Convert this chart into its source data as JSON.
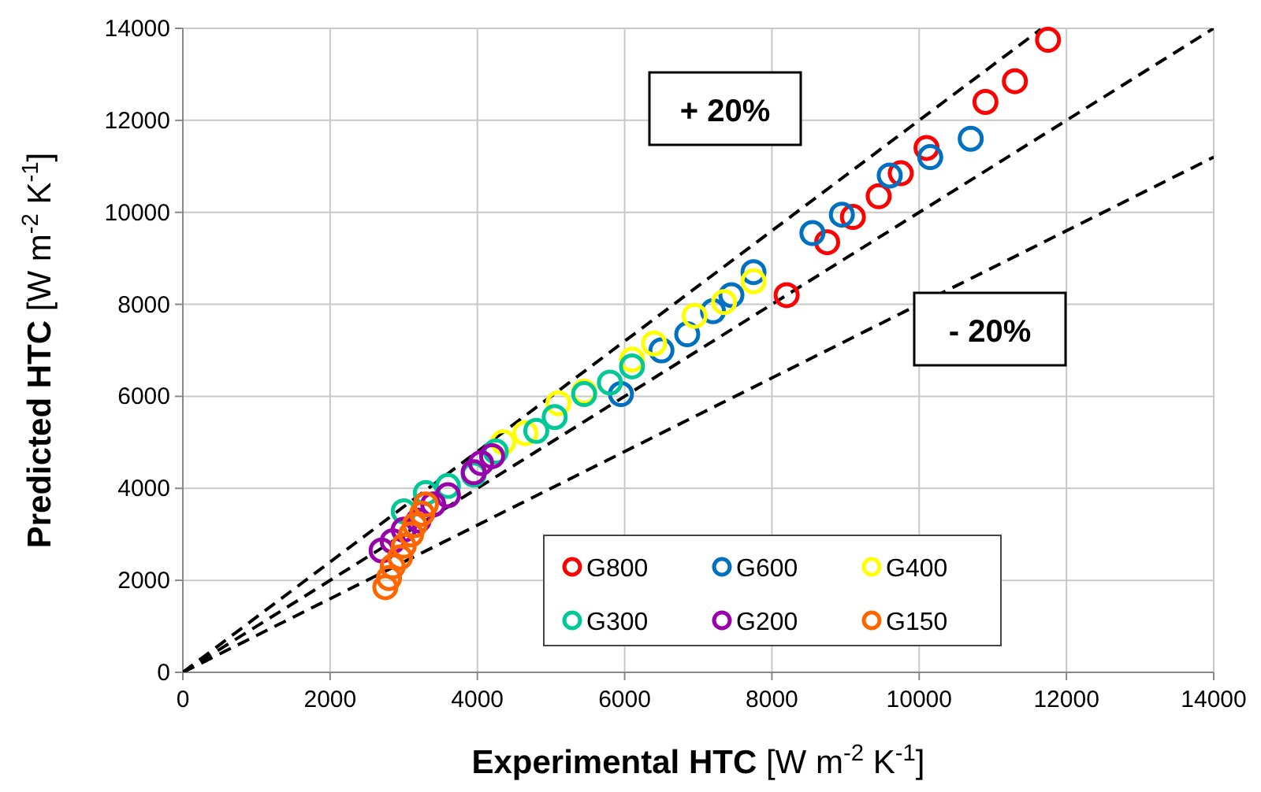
{
  "chart_data": {
    "type": "scatter",
    "xlabel": "Experimental  HTC [W m$^{-2}$ K$^{-1}$]",
    "ylabel": "Predicted  HTC  [W m$^{-2}$ K$^{-1}$]",
    "xlim": [
      0,
      14000
    ],
    "xticks": [
      0,
      2000,
      4000,
      6000,
      8000,
      10000,
      12000,
      14000
    ],
    "ylim": [
      0,
      14000
    ],
    "yticks": [
      0,
      2000,
      4000,
      6000,
      8000,
      10000,
      12000,
      14000
    ],
    "grid": true,
    "legend": "bottom right",
    "marker": "circle",
    "annotations": [
      "+ 20%",
      "- 20%"
    ],
    "series": [
      {
        "name": "G800",
        "color": "#ff0000",
        "x": [
          11750,
          11300,
          10900,
          10100,
          9750,
          9450,
          9100,
          8750,
          8200
        ],
        "values": [
          13750,
          12850,
          12400,
          11400,
          10850,
          10350,
          9900,
          9350,
          8200
        ]
      },
      {
        "name": "G600",
        "color": "#0070c0",
        "x": [
          10700,
          10150,
          9600,
          8950,
          8550,
          7750,
          7450,
          7200,
          6850,
          6500,
          5950
        ],
        "values": [
          11600,
          11200,
          10800,
          9950,
          9550,
          8700,
          8200,
          7850,
          7350,
          7000,
          6050
        ]
      },
      {
        "name": "G400",
        "color": "#ffff00",
        "x": [
          7750,
          7350,
          6950,
          6400,
          6100,
          5450,
          5100,
          4650,
          4350
        ],
        "values": [
          8500,
          8050,
          7750,
          7150,
          6800,
          6100,
          5850,
          5200,
          5000
        ]
      },
      {
        "name": "G300",
        "color": "#00c896",
        "x": [
          6100,
          5800,
          5450,
          5050,
          4800,
          4250,
          3950,
          3600,
          3300,
          3000
        ],
        "values": [
          6650,
          6300,
          6050,
          5550,
          5250,
          4800,
          4300,
          4050,
          3900,
          3500
        ]
      },
      {
        "name": "G200",
        "color": "#9900aa",
        "x": [
          4200,
          4050,
          3950,
          3600,
          3400,
          3200,
          3000,
          2850,
          2700
        ],
        "values": [
          4700,
          4550,
          4350,
          3850,
          3650,
          3300,
          3100,
          2850,
          2650
        ]
      },
      {
        "name": "G150",
        "color": "#ff6600",
        "x": [
          3300,
          3250,
          3150,
          3100,
          3000,
          2950,
          2850,
          2800,
          2750
        ],
        "values": [
          3650,
          3450,
          3200,
          3000,
          2750,
          2500,
          2300,
          2050,
          1850
        ]
      },
      {
        "type": "line",
        "color": "#000000",
        "line_style": "dashed",
        "marker": "none",
        "x": [
          0,
          11650
        ],
        "values": [
          0,
          13980
        ]
      },
      {
        "type": "line",
        "color": "#000000",
        "line_style": "dashed",
        "marker": "none",
        "x": [
          0,
          14000
        ],
        "values": [
          0,
          14000
        ]
      },
      {
        "type": "line",
        "color": "#000000",
        "line_style": "dashed",
        "marker": "none",
        "x": [
          0,
          14000
        ],
        "values": [
          0,
          11200
        ]
      }
    ]
  }
}
